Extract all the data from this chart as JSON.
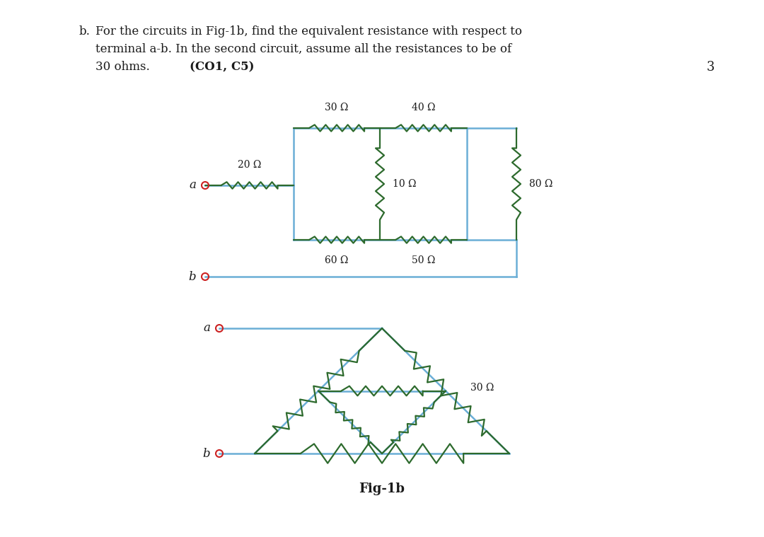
{
  "title_line1": "b.  For the circuits in Fig-1b, find the equivalent resistance with respect to",
  "title_line2": "    terminal a-b. In the second circuit, assume all the resistances to be of",
  "title_line3": "    30 ohms.        (CO1, C5)",
  "bold_part": "(CO1, C5)",
  "score": "3",
  "fig_label": "Fig-1b",
  "wire_color1": "#6baed6",
  "resistor_color1": "#2d6a2d",
  "wire_color2": "#6baed6",
  "resistor_color2": "#2d6a2d",
  "bg_color": "#ffffff",
  "text_color": "#1a1a1a",
  "terminal_color": "#cc2222",
  "c1_labels": [
    "20 Ω",
    "30 Ω",
    "40 Ω",
    "10 Ω",
    "60 Ω",
    "50 Ω",
    "80 Ω"
  ],
  "c2_label": "30 Ω"
}
